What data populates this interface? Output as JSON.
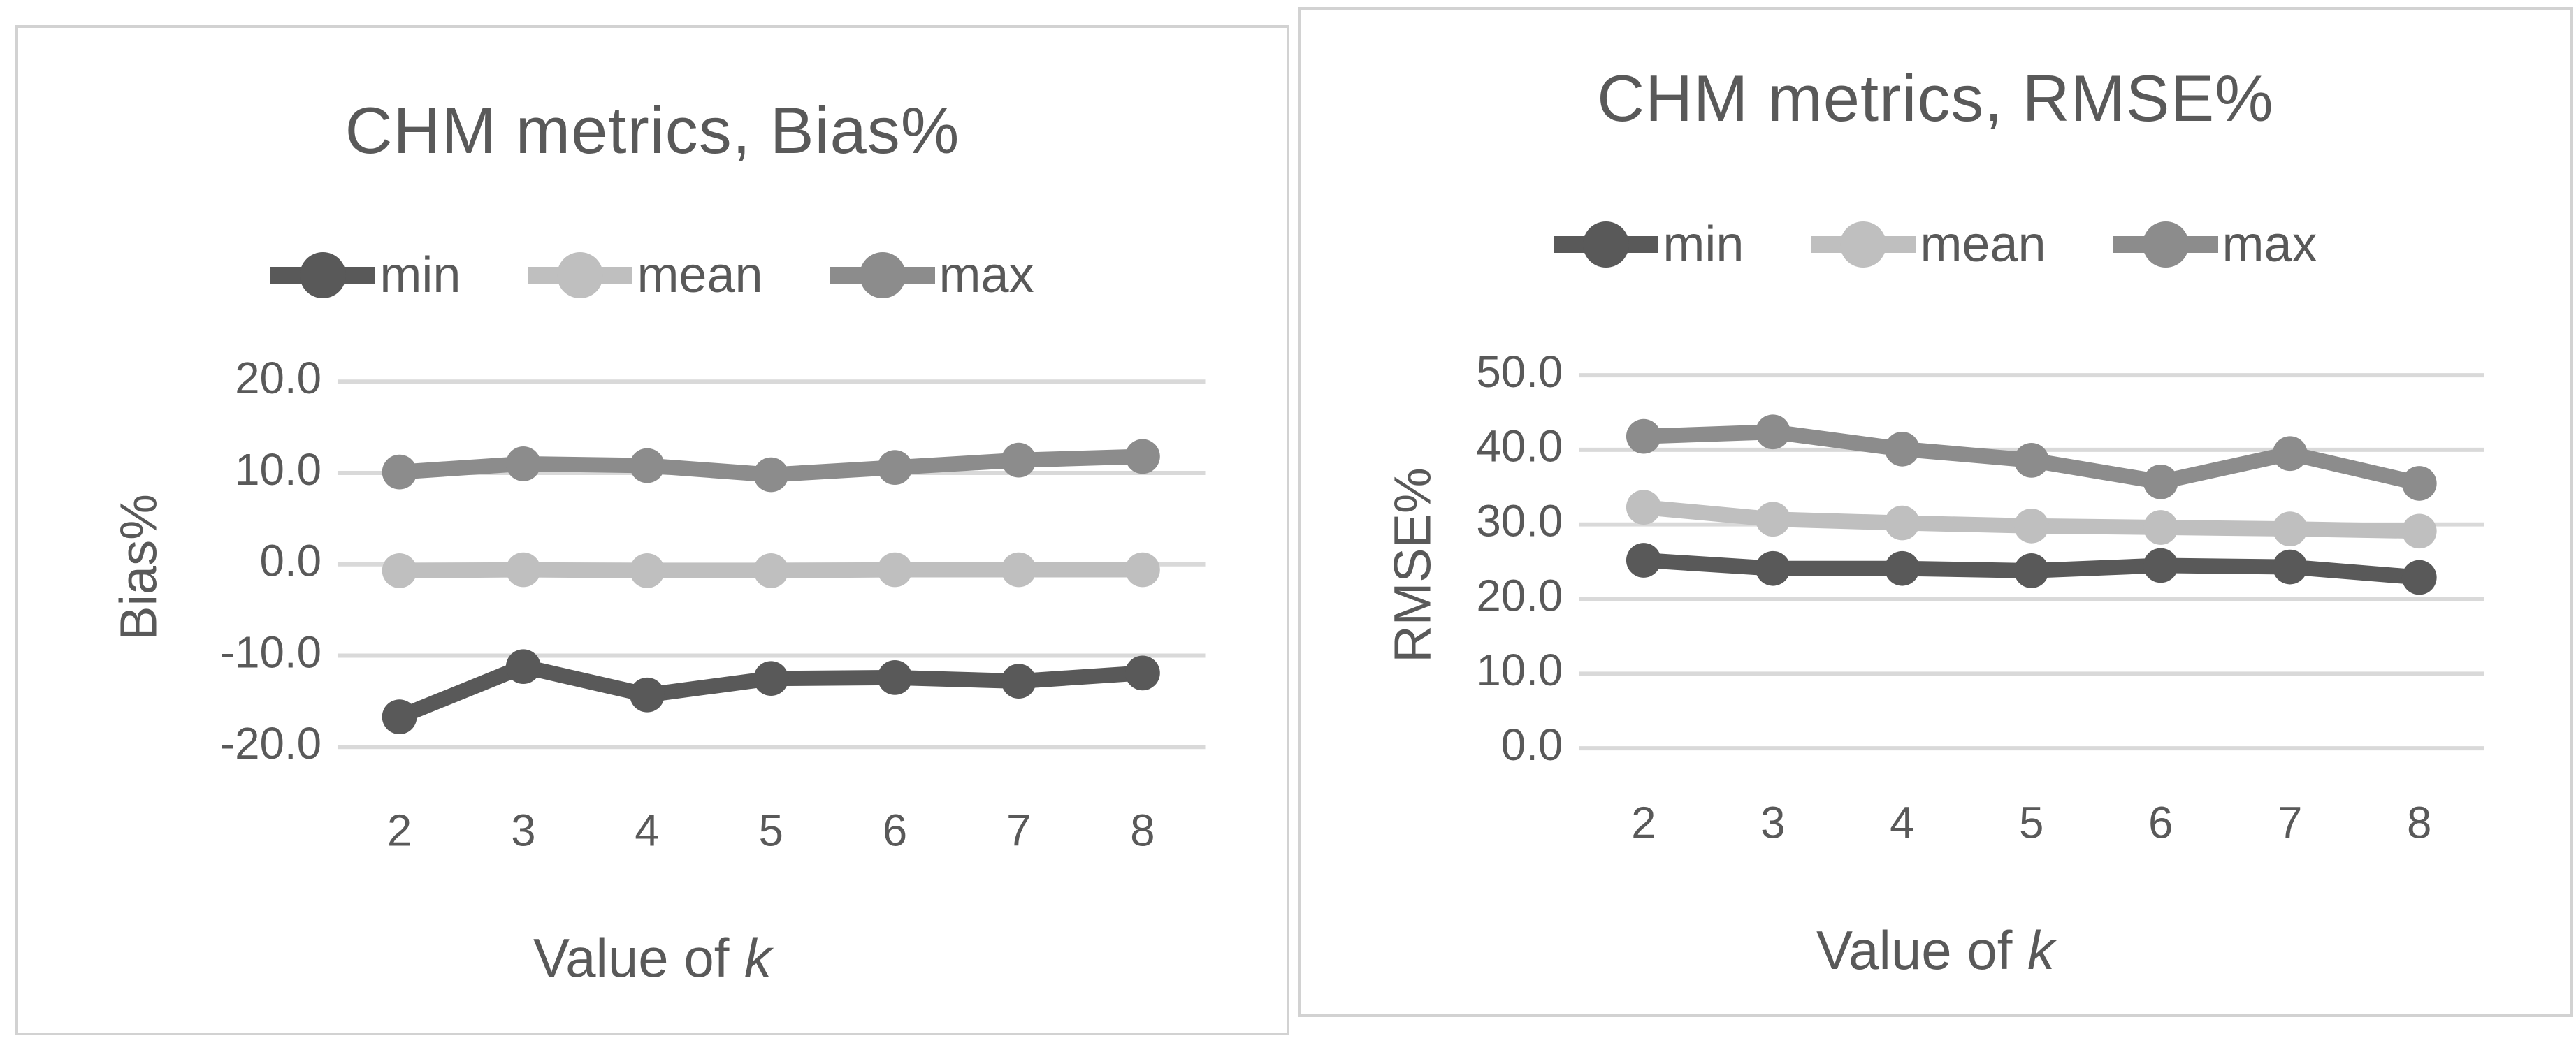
{
  "figure": {
    "gridline_color": "#d9d9d9",
    "text_color": "#595959",
    "panel_border_color": "#d2d2d2",
    "background": "#ffffff"
  },
  "chart_data": [
    {
      "type": "line",
      "title": "CHM metrics, Bias%",
      "ylabel": "Bias%",
      "xlabel": {
        "text": "Value of",
        "italic": "k"
      },
      "categories": [
        "2",
        "3",
        "4",
        "5",
        "6",
        "7",
        "8"
      ],
      "series": [
        {
          "name": "min",
          "color": "#595959",
          "values": [
            -16.7,
            -11.2,
            -14.3,
            -12.5,
            -12.4,
            -12.8,
            -11.9
          ]
        },
        {
          "name": "mean",
          "color": "#bfbfbf",
          "values": [
            -0.7,
            -0.6,
            -0.7,
            -0.7,
            -0.6,
            -0.6,
            -0.6
          ]
        },
        {
          "name": "max",
          "color": "#8c8c8c",
          "values": [
            10.1,
            11.0,
            10.8,
            9.8,
            10.6,
            11.4,
            11.8
          ]
        }
      ],
      "ylim": [
        -20,
        20
      ],
      "ytick_step": 10,
      "ytick_labels": [
        "20.0",
        "10.0",
        "0.0",
        "-10.0",
        "-20.0"
      ],
      "grid": true,
      "legend_position": "top"
    },
    {
      "type": "line",
      "title": "CHM metrics, RMSE%",
      "ylabel": "RMSE%",
      "xlabel": {
        "text": "Value of",
        "italic": "k"
      },
      "categories": [
        "2",
        "3",
        "4",
        "5",
        "6",
        "7",
        "8"
      ],
      "series": [
        {
          "name": "min",
          "color": "#595959",
          "values": [
            25.2,
            24.1,
            24.1,
            23.8,
            24.5,
            24.3,
            22.9
          ]
        },
        {
          "name": "mean",
          "color": "#bfbfbf",
          "values": [
            32.3,
            30.7,
            30.2,
            29.8,
            29.6,
            29.4,
            29.1
          ]
        },
        {
          "name": "max",
          "color": "#8c8c8c",
          "values": [
            41.8,
            42.4,
            40.1,
            38.6,
            35.7,
            39.5,
            35.5
          ]
        }
      ],
      "ylim": [
        0,
        50
      ],
      "ytick_step": 10,
      "ytick_labels": [
        "50.0",
        "40.0",
        "30.0",
        "20.0",
        "10.0",
        "0.0"
      ],
      "grid": true,
      "legend_position": "top"
    }
  ]
}
